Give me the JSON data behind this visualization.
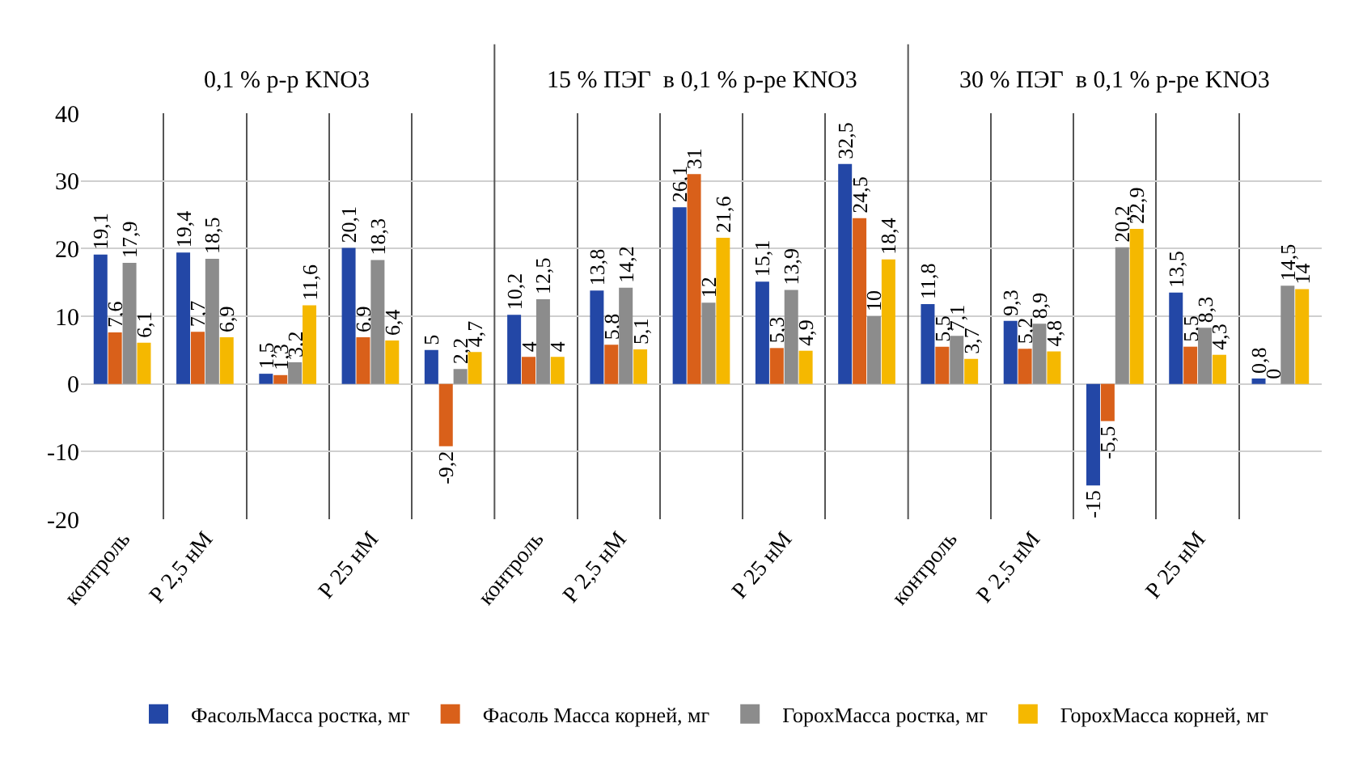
{
  "chart_data": [
    {
      "type": "bar",
      "title": "0,1 % р-р KNO3",
      "categories": [
        "контроль",
        "Р 2,5 нМ",
        null,
        "Р 25 нМ",
        null
      ],
      "ylim": [
        -20,
        40
      ],
      "yticks": [
        -20,
        -10,
        0,
        10,
        20,
        30,
        40
      ],
      "grid": true,
      "legend": "bottom",
      "series": [
        {
          "name": "ФасольМасса ростка, мг",
          "color": "#2347a6",
          "values": [
            19.1,
            19.4,
            1.5,
            20.1,
            5
          ],
          "value_labels": [
            "19,1",
            "19,4",
            "1,5",
            "20,1",
            "5"
          ]
        },
        {
          "name": "Фасоль Масса корней, мг",
          "color": "#d9601a",
          "values": [
            7.6,
            7.7,
            1.3,
            6.9,
            -9.2
          ],
          "value_labels": [
            "7,6",
            "7,7",
            "1,3",
            "6,9",
            "-9,2"
          ]
        },
        {
          "name": "ГорохМасса ростка, мг",
          "color": "#8c8c8c",
          "values": [
            17.9,
            18.5,
            3.2,
            18.3,
            2.2
          ],
          "value_labels": [
            "17,9",
            "18,5",
            "3,2",
            "18,3",
            "2,2"
          ]
        },
        {
          "name": "ГорохМасса корней, мг",
          "color": "#f5b800",
          "values": [
            6.1,
            6.9,
            11.6,
            6.4,
            4.7
          ],
          "value_labels": [
            "6,1",
            "6,9",
            "11,6",
            "6,4",
            "4,7"
          ]
        }
      ]
    },
    {
      "type": "bar",
      "title": "15 % ПЭГ  в 0,1 % р-ре KNO3",
      "categories": [
        "контроль",
        "Р 2,5 нМ",
        null,
        "Р 25 нМ",
        null
      ],
      "ylim": [
        -20,
        40
      ],
      "tick_labels": "x",
      "grid": true,
      "series": [
        {
          "color": "#2347a6",
          "values": [
            10.2,
            13.8,
            26.1,
            15.1,
            32.5
          ],
          "value_labels": [
            "10,2",
            "13,8",
            "26,1",
            "15,1",
            "32,5"
          ]
        },
        {
          "color": "#d9601a",
          "values": [
            4,
            5.8,
            31,
            5.3,
            24.5
          ],
          "value_labels": [
            "4",
            "5,8",
            "31",
            "5,3",
            "24,5"
          ]
        },
        {
          "color": "#8c8c8c",
          "values": [
            12.5,
            14.2,
            12,
            13.9,
            10
          ],
          "value_labels": [
            "12,5",
            "14,2",
            "12",
            "13,9",
            "10"
          ]
        },
        {
          "color": "#f5b800",
          "values": [
            4,
            5.1,
            21.6,
            4.9,
            18.4
          ],
          "value_labels": [
            "4",
            "5,1",
            "21,6",
            "4,9",
            "18,4"
          ]
        }
      ]
    },
    {
      "type": "bar",
      "title": "30 % ПЭГ  в 0,1 % р-ре KNO3",
      "categories": [
        "контроль",
        "Р 2,5 нМ",
        null,
        "Р 25 нМ",
        null
      ],
      "ylim": [
        -20,
        40
      ],
      "tick_labels": "x",
      "grid": true,
      "series": [
        {
          "color": "#2347a6",
          "values": [
            11.8,
            9.3,
            -15,
            13.5,
            0.8
          ],
          "value_labels": [
            "11,8",
            "9,3",
            "-15",
            "13,5",
            "0,8"
          ]
        },
        {
          "color": "#d9601a",
          "values": [
            5.5,
            5.2,
            -5.5,
            5.5,
            0
          ],
          "value_labels": [
            "5,5",
            "5,2",
            "-5,5",
            "5,5",
            "0"
          ]
        },
        {
          "color": "#8c8c8c",
          "values": [
            7.1,
            8.9,
            20.2,
            8.3,
            14.5
          ],
          "value_labels": [
            "7,1",
            "8,9",
            "20,2",
            "8,3",
            "14,5"
          ]
        },
        {
          "color": "#f5b800",
          "values": [
            3.7,
            4.8,
            22.9,
            4.3,
            14
          ],
          "value_labels": [
            "3,7",
            "4,8",
            "22,9",
            "4,3",
            "14"
          ]
        }
      ]
    }
  ]
}
